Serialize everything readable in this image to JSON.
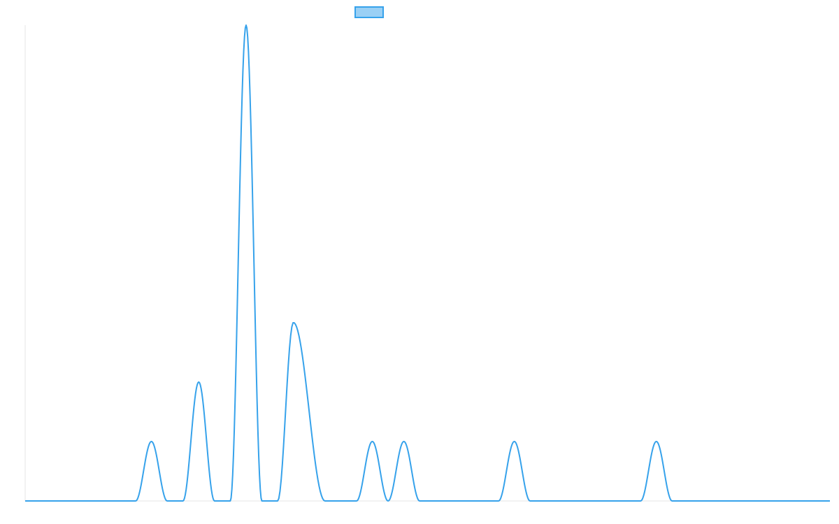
{
  "chart_data": {
    "type": "area",
    "title": "",
    "xlabel": "",
    "ylabel": "",
    "grid": false,
    "legend": {
      "position": "top-center",
      "entries": [
        ""
      ]
    },
    "colors": {
      "line": "#36a2eb",
      "fill": "#9ad0f5",
      "axis": "#e5e5e5"
    },
    "xlim": [
      0,
      1020
    ],
    "ylim": [
      0,
      8
    ],
    "peak_shape": "smooth bump rising from and returning to the baseline",
    "series": [
      {
        "values": [
          {
            "start": 140,
            "peak": 160,
            "end": 180,
            "height": 1
          },
          {
            "start": 200,
            "peak": 220,
            "end": 240,
            "height": 2
          },
          {
            "start": 260,
            "peak": 280,
            "end": 300,
            "height": 8
          },
          {
            "start": 320,
            "peak": 340,
            "end": 380,
            "height": 3
          },
          {
            "start": 420,
            "peak": 440,
            "end": 460,
            "height": 1
          },
          {
            "start": 460,
            "peak": 480,
            "end": 500,
            "height": 1
          },
          {
            "start": 600,
            "peak": 620,
            "end": 640,
            "height": 1
          },
          {
            "start": 780,
            "peak": 800,
            "end": 820,
            "height": 1
          }
        ]
      }
    ]
  }
}
